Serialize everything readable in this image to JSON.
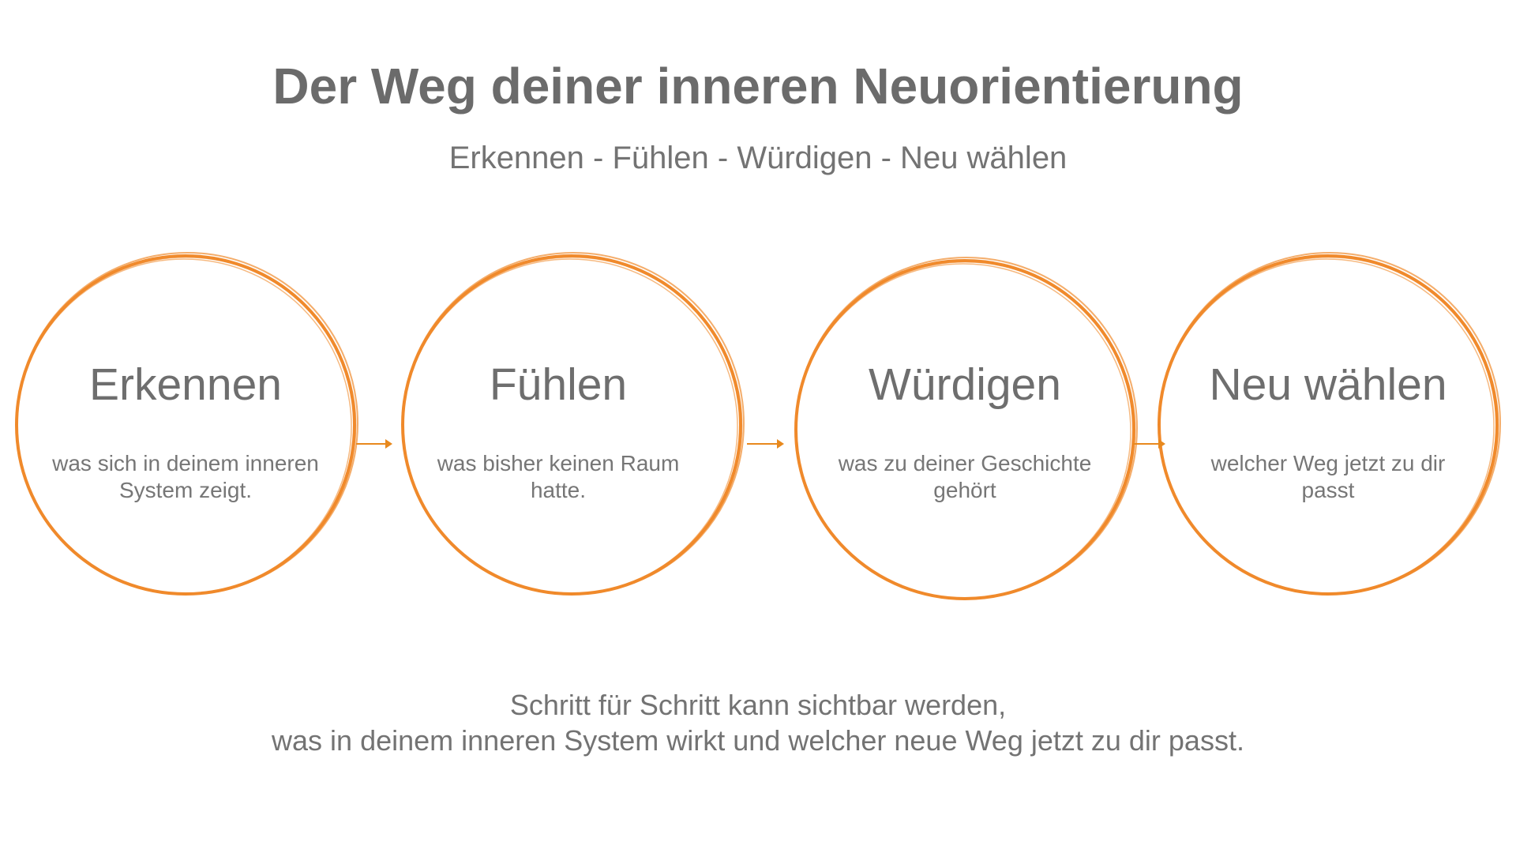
{
  "title": "Der Weg deiner inneren Neuorientierung",
  "subtitle": "Erkennen - Fühlen - Würdigen - Neu wählen",
  "steps": [
    {
      "title": "Erkennen",
      "text": "was sich in deinem inneren System zeigt."
    },
    {
      "title": "Fühlen",
      "text": "was bisher keinen Raum hatte."
    },
    {
      "title": "Würdigen",
      "text": "was zu deiner Geschichte gehört"
    },
    {
      "title": "Neu wählen",
      "text": "welcher Weg jetzt zu dir passt"
    }
  ],
  "footer": {
    "line1": "Schritt für Schritt kann sichtbar werden,",
    "line2": "was in deinem inneren System wirkt und welcher neue Weg jetzt zu dir passt."
  },
  "colors": {
    "accent": "#f08a2c",
    "arrow": "#e8891e",
    "text": "#707070"
  },
  "icons": {
    "circle": "brush-circle-icon",
    "arrow": "arrow-right-icon"
  }
}
